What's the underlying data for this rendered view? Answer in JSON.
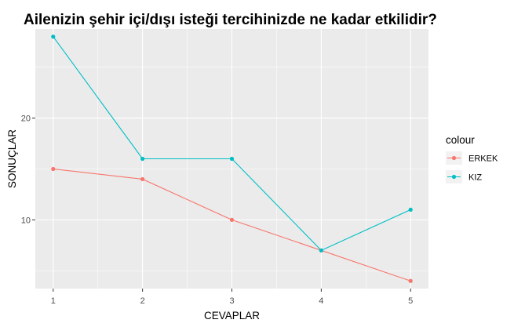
{
  "chart_data": {
    "type": "line",
    "title": "Ailenizin şehir içi/dışı isteği tercihinizde ne kadar etkilidir?",
    "xlabel": "CEVAPLAR",
    "ylabel": "SONUÇLAR",
    "x": [
      1,
      2,
      3,
      4,
      5
    ],
    "x_ticks": [
      "1",
      "2",
      "3",
      "4",
      "5"
    ],
    "y_ticks": [
      10,
      20
    ],
    "y_tick_labels": [
      "10",
      "20"
    ],
    "xlim": [
      0.8,
      5.2
    ],
    "ylim": [
      3.25,
      28.75
    ],
    "grid": true,
    "legend": {
      "title": "colour",
      "placement": "right"
    },
    "series": [
      {
        "name": "ERKEK",
        "color": "#F8766D",
        "values": [
          15,
          14,
          10,
          7,
          4
        ]
      },
      {
        "name": "KIZ",
        "color": "#00BFC4",
        "values": [
          28,
          16,
          16,
          7,
          11
        ]
      }
    ]
  }
}
